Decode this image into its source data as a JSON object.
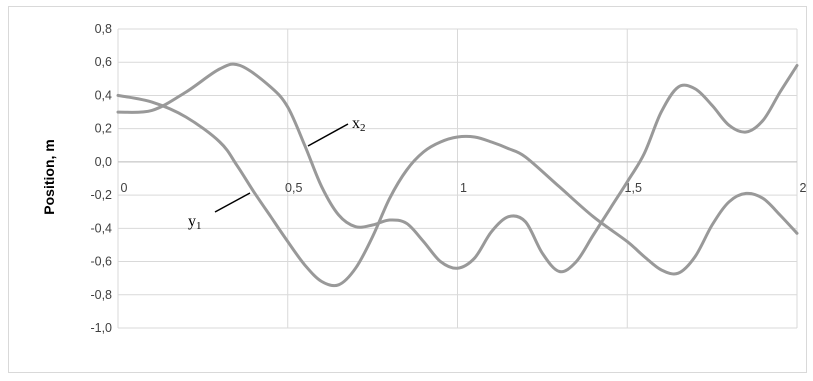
{
  "chart_data": {
    "type": "line",
    "title": "",
    "xlabel": "",
    "ylabel": "Position, m",
    "xlim": [
      0,
      2
    ],
    "ylim": [
      -1.0,
      0.8
    ],
    "x_ticks": [
      {
        "value": 0,
        "label": "0"
      },
      {
        "value": 0.5,
        "label": "0,5"
      },
      {
        "value": 1,
        "label": "1"
      },
      {
        "value": 1.5,
        "label": "1,5"
      },
      {
        "value": 2,
        "label": "2"
      }
    ],
    "y_ticks": [
      {
        "value": 0.8,
        "label": "0,8"
      },
      {
        "value": 0.6,
        "label": "0,6"
      },
      {
        "value": 0.4,
        "label": "0,4"
      },
      {
        "value": 0.2,
        "label": "0,2"
      },
      {
        "value": 0.0,
        "label": "0,0"
      },
      {
        "value": -0.2,
        "label": "-0,2"
      },
      {
        "value": -0.4,
        "label": "-0,4"
      },
      {
        "value": -0.6,
        "label": "-0,6"
      },
      {
        "value": -0.8,
        "label": "-0,8"
      },
      {
        "value": -1.0,
        "label": "-1,0"
      }
    ],
    "grid": {
      "vertical": true,
      "horizontal": true
    },
    "legend": "none",
    "series_color": "#999999",
    "series": [
      {
        "name": "x2",
        "annotation": {
          "base": "x",
          "sub": "2"
        },
        "points": [
          [
            0,
            0.3
          ],
          [
            0.1,
            0.31
          ],
          [
            0.2,
            0.42
          ],
          [
            0.3,
            0.56
          ],
          [
            0.36,
            0.58
          ],
          [
            0.45,
            0.45
          ],
          [
            0.5,
            0.33
          ],
          [
            0.55,
            0.1
          ],
          [
            0.6,
            -0.15
          ],
          [
            0.65,
            -0.32
          ],
          [
            0.7,
            -0.39
          ],
          [
            0.75,
            -0.38
          ],
          [
            0.8,
            -0.35
          ],
          [
            0.85,
            -0.37
          ],
          [
            0.9,
            -0.48
          ],
          [
            0.95,
            -0.6
          ],
          [
            1.0,
            -0.64
          ],
          [
            1.05,
            -0.58
          ],
          [
            1.1,
            -0.42
          ],
          [
            1.15,
            -0.33
          ],
          [
            1.2,
            -0.36
          ],
          [
            1.25,
            -0.55
          ],
          [
            1.3,
            -0.66
          ],
          [
            1.35,
            -0.6
          ],
          [
            1.4,
            -0.44
          ],
          [
            1.45,
            -0.28
          ],
          [
            1.5,
            -0.12
          ],
          [
            1.55,
            0.05
          ],
          [
            1.6,
            0.3
          ],
          [
            1.65,
            0.45
          ],
          [
            1.7,
            0.44
          ],
          [
            1.75,
            0.34
          ],
          [
            1.8,
            0.22
          ],
          [
            1.85,
            0.18
          ],
          [
            1.9,
            0.25
          ],
          [
            1.95,
            0.42
          ],
          [
            2.0,
            0.58
          ]
        ]
      },
      {
        "name": "y1",
        "annotation": {
          "base": "y",
          "sub": "1"
        },
        "points": [
          [
            0,
            0.4
          ],
          [
            0.1,
            0.36
          ],
          [
            0.2,
            0.27
          ],
          [
            0.3,
            0.12
          ],
          [
            0.35,
            -0.02
          ],
          [
            0.4,
            -0.18
          ],
          [
            0.45,
            -0.33
          ],
          [
            0.5,
            -0.48
          ],
          [
            0.55,
            -0.62
          ],
          [
            0.6,
            -0.72
          ],
          [
            0.65,
            -0.74
          ],
          [
            0.7,
            -0.64
          ],
          [
            0.75,
            -0.45
          ],
          [
            0.8,
            -0.22
          ],
          [
            0.85,
            -0.05
          ],
          [
            0.9,
            0.06
          ],
          [
            0.95,
            0.12
          ],
          [
            1.0,
            0.15
          ],
          [
            1.05,
            0.15
          ],
          [
            1.1,
            0.12
          ],
          [
            1.15,
            0.08
          ],
          [
            1.2,
            0.03
          ],
          [
            1.3,
            -0.15
          ],
          [
            1.4,
            -0.33
          ],
          [
            1.5,
            -0.48
          ],
          [
            1.55,
            -0.57
          ],
          [
            1.6,
            -0.65
          ],
          [
            1.65,
            -0.67
          ],
          [
            1.7,
            -0.57
          ],
          [
            1.75,
            -0.38
          ],
          [
            1.8,
            -0.24
          ],
          [
            1.85,
            -0.19
          ],
          [
            1.9,
            -0.22
          ],
          [
            1.95,
            -0.32
          ],
          [
            2.0,
            -0.43
          ]
        ]
      }
    ]
  }
}
